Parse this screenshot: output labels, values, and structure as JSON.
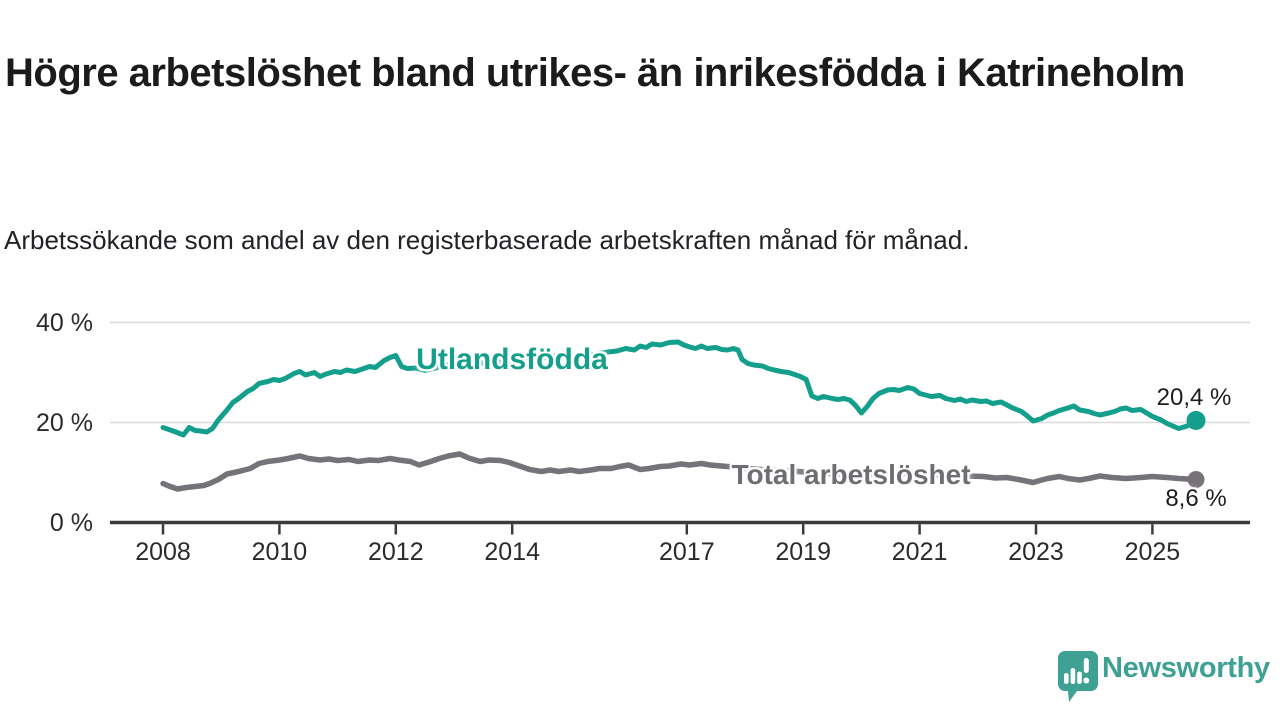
{
  "header": {
    "title": "Högre arbetslöshet bland utrikes- än inrikesfödda i Katrineholm",
    "subtitle": "Arbetssökande som andel av den registerbaserade arbetskraften månad för månad."
  },
  "chart_data": {
    "type": "line",
    "title": "Högre arbetslöshet bland utrikes- än inrikesfödda i Katrineholm",
    "subtitle": "Arbetssökande som andel av den registerbaserade arbetskraften månad för månad.",
    "xlabel": "",
    "ylabel": "",
    "unit": "%",
    "ylim": [
      0,
      42
    ],
    "xlim": [
      2007.1,
      2026.7
    ],
    "grid": "horizontal",
    "grid_color": "#dadada",
    "axis_color": "#3b3b3b",
    "tick_label_color": "#2b2b2e",
    "legend_position": "inline-on-line",
    "y_ticks": [
      {
        "label": "0 %",
        "value": 0
      },
      {
        "label": "20 %",
        "value": 20
      },
      {
        "label": "40 %",
        "value": 40
      }
    ],
    "x_ticks": [
      {
        "label": "2008",
        "value": 2008
      },
      {
        "label": "2010",
        "value": 2010
      },
      {
        "label": "2012",
        "value": 2012
      },
      {
        "label": "2014",
        "value": 2014
      },
      {
        "label": "2017",
        "value": 2017
      },
      {
        "label": "2019",
        "value": 2019
      },
      {
        "label": "2021",
        "value": 2021
      },
      {
        "label": "2023",
        "value": 2023
      },
      {
        "label": "2025",
        "value": 2025
      }
    ],
    "series": [
      {
        "name": "Utlandsfödda",
        "color": "#149e8c",
        "end_label": "20,4 %",
        "end_value": 20.4,
        "points": [
          [
            2008.0,
            19.0
          ],
          [
            2008.1,
            18.6
          ],
          [
            2008.2,
            18.2
          ],
          [
            2008.35,
            17.5
          ],
          [
            2008.45,
            19.0
          ],
          [
            2008.55,
            18.4
          ],
          [
            2008.65,
            18.3
          ],
          [
            2008.75,
            18.1
          ],
          [
            2008.85,
            18.8
          ],
          [
            2008.95,
            20.5
          ],
          [
            2009.1,
            22.5
          ],
          [
            2009.2,
            24.0
          ],
          [
            2009.3,
            24.8
          ],
          [
            2009.45,
            26.2
          ],
          [
            2009.55,
            26.8
          ],
          [
            2009.65,
            27.8
          ],
          [
            2009.8,
            28.2
          ],
          [
            2009.9,
            28.6
          ],
          [
            2010.0,
            28.4
          ],
          [
            2010.1,
            28.8
          ],
          [
            2010.25,
            29.8
          ],
          [
            2010.35,
            30.2
          ],
          [
            2010.45,
            29.5
          ],
          [
            2010.6,
            30.0
          ],
          [
            2010.7,
            29.2
          ],
          [
            2010.8,
            29.7
          ],
          [
            2010.95,
            30.2
          ],
          [
            2011.05,
            30.0
          ],
          [
            2011.15,
            30.5
          ],
          [
            2011.3,
            30.2
          ],
          [
            2011.4,
            30.6
          ],
          [
            2011.55,
            31.2
          ],
          [
            2011.65,
            31.0
          ],
          [
            2011.8,
            32.4
          ],
          [
            2011.9,
            33.0
          ],
          [
            2012.0,
            33.4
          ],
          [
            2012.1,
            31.2
          ],
          [
            2012.2,
            30.8
          ],
          [
            2012.35,
            30.9
          ],
          [
            2012.5,
            30.4
          ],
          [
            2012.65,
            30.8
          ],
          [
            2012.8,
            31.2
          ],
          [
            2012.95,
            31.7
          ],
          [
            2013.1,
            31.5
          ],
          [
            2013.25,
            32.1
          ],
          [
            2013.4,
            31.8
          ],
          [
            2013.55,
            32.0
          ],
          [
            2013.7,
            32.4
          ],
          [
            2013.85,
            32.2
          ],
          [
            2014.0,
            32.5
          ],
          [
            2014.15,
            32.9
          ],
          [
            2014.3,
            33.1
          ],
          [
            2014.45,
            32.8
          ],
          [
            2014.6,
            33.0
          ],
          [
            2014.75,
            33.3
          ],
          [
            2014.9,
            33.1
          ],
          [
            2015.05,
            33.3
          ],
          [
            2015.2,
            33.6
          ],
          [
            2015.35,
            33.5
          ],
          [
            2015.5,
            33.8
          ],
          [
            2015.65,
            34.1
          ],
          [
            2015.8,
            34.3
          ],
          [
            2015.95,
            34.8
          ],
          [
            2016.1,
            34.5
          ],
          [
            2016.2,
            35.3
          ],
          [
            2016.3,
            35.0
          ],
          [
            2016.4,
            35.7
          ],
          [
            2016.55,
            35.5
          ],
          [
            2016.7,
            36.0
          ],
          [
            2016.85,
            36.1
          ],
          [
            2016.95,
            35.5
          ],
          [
            2017.05,
            35.1
          ],
          [
            2017.15,
            34.8
          ],
          [
            2017.25,
            35.3
          ],
          [
            2017.35,
            34.8
          ],
          [
            2017.5,
            35.0
          ],
          [
            2017.6,
            34.6
          ],
          [
            2017.7,
            34.5
          ],
          [
            2017.8,
            34.8
          ],
          [
            2017.88,
            34.5
          ],
          [
            2017.95,
            32.6
          ],
          [
            2018.05,
            31.8
          ],
          [
            2018.15,
            31.5
          ],
          [
            2018.3,
            31.3
          ],
          [
            2018.4,
            30.8
          ],
          [
            2018.5,
            30.5
          ],
          [
            2018.62,
            30.2
          ],
          [
            2018.75,
            30.0
          ],
          [
            2018.85,
            29.6
          ],
          [
            2018.95,
            29.2
          ],
          [
            2019.05,
            28.6
          ],
          [
            2019.15,
            25.3
          ],
          [
            2019.25,
            24.8
          ],
          [
            2019.35,
            25.2
          ],
          [
            2019.5,
            24.8
          ],
          [
            2019.6,
            24.6
          ],
          [
            2019.7,
            24.8
          ],
          [
            2019.8,
            24.5
          ],
          [
            2019.9,
            23.4
          ],
          [
            2020.0,
            21.9
          ],
          [
            2020.1,
            23.2
          ],
          [
            2020.2,
            24.8
          ],
          [
            2020.3,
            25.8
          ],
          [
            2020.45,
            26.5
          ],
          [
            2020.55,
            26.6
          ],
          [
            2020.65,
            26.4
          ],
          [
            2020.8,
            27.0
          ],
          [
            2020.9,
            26.7
          ],
          [
            2021.0,
            25.8
          ],
          [
            2021.1,
            25.5
          ],
          [
            2021.2,
            25.2
          ],
          [
            2021.35,
            25.4
          ],
          [
            2021.45,
            24.8
          ],
          [
            2021.6,
            24.4
          ],
          [
            2021.7,
            24.7
          ],
          [
            2021.8,
            24.2
          ],
          [
            2021.9,
            24.5
          ],
          [
            2022.05,
            24.2
          ],
          [
            2022.15,
            24.3
          ],
          [
            2022.25,
            23.8
          ],
          [
            2022.4,
            24.1
          ],
          [
            2022.5,
            23.5
          ],
          [
            2022.6,
            22.9
          ],
          [
            2022.75,
            22.2
          ],
          [
            2022.85,
            21.3
          ],
          [
            2022.95,
            20.3
          ],
          [
            2023.1,
            20.8
          ],
          [
            2023.2,
            21.5
          ],
          [
            2023.3,
            21.9
          ],
          [
            2023.4,
            22.4
          ],
          [
            2023.55,
            22.9
          ],
          [
            2023.65,
            23.3
          ],
          [
            2023.75,
            22.5
          ],
          [
            2023.9,
            22.2
          ],
          [
            2024.0,
            21.8
          ],
          [
            2024.1,
            21.5
          ],
          [
            2024.25,
            21.9
          ],
          [
            2024.35,
            22.2
          ],
          [
            2024.45,
            22.7
          ],
          [
            2024.55,
            22.9
          ],
          [
            2024.65,
            22.4
          ],
          [
            2024.8,
            22.6
          ],
          [
            2024.9,
            21.9
          ],
          [
            2025.0,
            21.2
          ],
          [
            2025.15,
            20.5
          ],
          [
            2025.25,
            19.8
          ],
          [
            2025.35,
            19.3
          ],
          [
            2025.45,
            18.8
          ],
          [
            2025.6,
            19.3
          ],
          [
            2025.7,
            20.1
          ],
          [
            2025.75,
            20.4
          ]
        ]
      },
      {
        "name": "Total arbetslöshet",
        "color": "#767378",
        "end_label": "8,6 %",
        "end_value": 8.6,
        "points": [
          [
            2008.0,
            7.8
          ],
          [
            2008.1,
            7.3
          ],
          [
            2008.25,
            6.7
          ],
          [
            2008.4,
            7.0
          ],
          [
            2008.55,
            7.2
          ],
          [
            2008.7,
            7.4
          ],
          [
            2008.8,
            7.8
          ],
          [
            2008.95,
            8.6
          ],
          [
            2009.1,
            9.7
          ],
          [
            2009.3,
            10.2
          ],
          [
            2009.5,
            10.8
          ],
          [
            2009.65,
            11.8
          ],
          [
            2009.8,
            12.2
          ],
          [
            2010.0,
            12.5
          ],
          [
            2010.15,
            12.8
          ],
          [
            2010.35,
            13.3
          ],
          [
            2010.5,
            12.8
          ],
          [
            2010.7,
            12.5
          ],
          [
            2010.85,
            12.7
          ],
          [
            2011.0,
            12.4
          ],
          [
            2011.2,
            12.6
          ],
          [
            2011.35,
            12.2
          ],
          [
            2011.55,
            12.5
          ],
          [
            2011.7,
            12.4
          ],
          [
            2011.9,
            12.8
          ],
          [
            2012.05,
            12.5
          ],
          [
            2012.25,
            12.2
          ],
          [
            2012.4,
            11.5
          ],
          [
            2012.6,
            12.2
          ],
          [
            2012.75,
            12.8
          ],
          [
            2012.9,
            13.3
          ],
          [
            2013.1,
            13.7
          ],
          [
            2013.25,
            12.9
          ],
          [
            2013.45,
            12.2
          ],
          [
            2013.6,
            12.5
          ],
          [
            2013.8,
            12.4
          ],
          [
            2013.95,
            12.0
          ],
          [
            2014.15,
            11.2
          ],
          [
            2014.3,
            10.6
          ],
          [
            2014.5,
            10.2
          ],
          [
            2014.65,
            10.5
          ],
          [
            2014.8,
            10.2
          ],
          [
            2015.0,
            10.5
          ],
          [
            2015.15,
            10.2
          ],
          [
            2015.35,
            10.5
          ],
          [
            2015.5,
            10.8
          ],
          [
            2015.7,
            10.8
          ],
          [
            2015.85,
            11.2
          ],
          [
            2016.0,
            11.5
          ],
          [
            2016.2,
            10.6
          ],
          [
            2016.35,
            10.8
          ],
          [
            2016.55,
            11.2
          ],
          [
            2016.7,
            11.3
          ],
          [
            2016.9,
            11.7
          ],
          [
            2017.05,
            11.5
          ],
          [
            2017.25,
            11.8
          ],
          [
            2017.4,
            11.5
          ],
          [
            2017.6,
            11.3
          ],
          [
            2017.8,
            11.1
          ],
          [
            2018.0,
            10.8
          ],
          [
            2018.3,
            10.6
          ],
          [
            2018.6,
            10.4
          ],
          [
            2018.9,
            10.2
          ],
          [
            2019.1,
            10.0
          ],
          [
            2019.4,
            9.8
          ],
          [
            2019.7,
            9.6
          ],
          [
            2020.0,
            9.5
          ],
          [
            2020.3,
            9.8
          ],
          [
            2020.6,
            9.9
          ],
          [
            2020.9,
            9.7
          ],
          [
            2021.2,
            9.5
          ],
          [
            2021.5,
            9.4
          ],
          [
            2021.8,
            9.3
          ],
          [
            2022.1,
            9.2
          ],
          [
            2022.3,
            8.9
          ],
          [
            2022.5,
            9.0
          ],
          [
            2022.7,
            8.6
          ],
          [
            2022.95,
            8.0
          ],
          [
            2023.1,
            8.5
          ],
          [
            2023.2,
            8.8
          ],
          [
            2023.4,
            9.2
          ],
          [
            2023.55,
            8.8
          ],
          [
            2023.75,
            8.5
          ],
          [
            2023.9,
            8.8
          ],
          [
            2024.1,
            9.3
          ],
          [
            2024.3,
            9.0
          ],
          [
            2024.55,
            8.8
          ],
          [
            2024.8,
            9.0
          ],
          [
            2025.0,
            9.2
          ],
          [
            2025.25,
            9.0
          ],
          [
            2025.45,
            8.8
          ],
          [
            2025.6,
            8.7
          ],
          [
            2025.75,
            8.6
          ]
        ]
      }
    ]
  },
  "branding": {
    "logo_text": "Newsworthy",
    "logo_color": "#3fa094",
    "logo_icon": "newsworthy-bar-chart-speech-bubble-icon"
  }
}
